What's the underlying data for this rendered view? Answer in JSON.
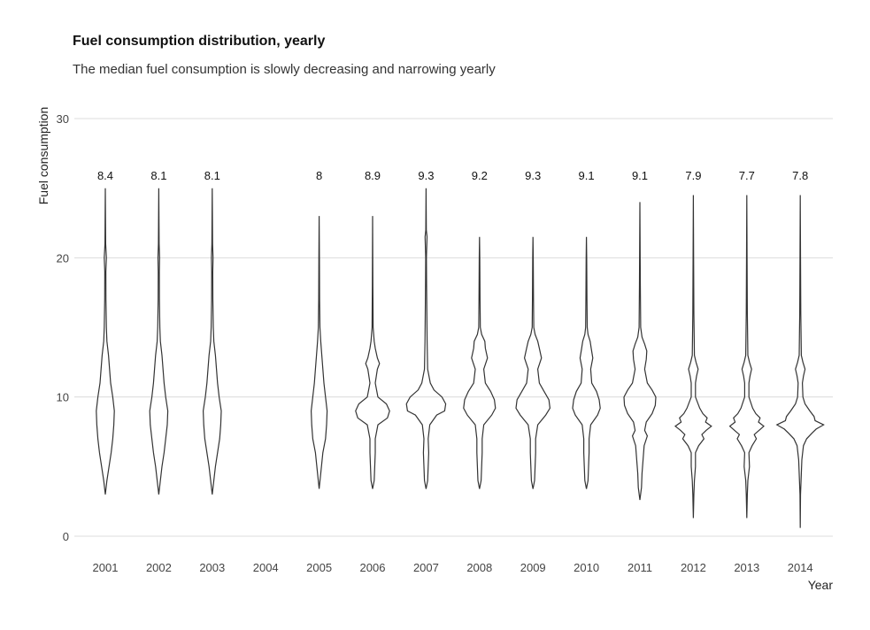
{
  "chart_data": {
    "type": "violin",
    "title": "Fuel consumption distribution, yearly",
    "subtitle": "The median fuel consumption is slowly decreasing and narrowing yearly",
    "xlabel": "Year",
    "ylabel": "Fuel consumption",
    "ylim": [
      0,
      30
    ],
    "yticks": [
      0,
      10,
      20,
      30
    ],
    "grid": true,
    "categories": [
      "2001",
      "2002",
      "2003",
      "2004",
      "2005",
      "2006",
      "2007",
      "2008",
      "2009",
      "2010",
      "2011",
      "2012",
      "2013",
      "2014"
    ],
    "medians": [
      "8.4",
      "8.1",
      "8.1",
      "",
      "8",
      "8.9",
      "9.3",
      "9.2",
      "9.3",
      "9.1",
      "9.1",
      "7.9",
      "7.7",
      "7.8"
    ],
    "ranges": [
      [
        3,
        25
      ],
      [
        3,
        25
      ],
      [
        3,
        25
      ],
      null,
      [
        3.4,
        23
      ],
      [
        3.4,
        23
      ],
      [
        3.4,
        25
      ],
      [
        3.4,
        21.5
      ],
      [
        3.4,
        21.5
      ],
      [
        3.4,
        21.5
      ],
      [
        2.6,
        24
      ],
      [
        1.3,
        24.5
      ],
      [
        1.3,
        24.5
      ],
      [
        0.6,
        24.5
      ]
    ],
    "density": [
      [
        [
          3,
          0
        ],
        [
          4,
          0.3
        ],
        [
          5,
          0.7
        ],
        [
          6,
          1.1
        ],
        [
          7,
          1.4
        ],
        [
          8,
          1.6
        ],
        [
          9,
          1.7
        ],
        [
          10,
          1.4
        ],
        [
          11,
          1.0
        ],
        [
          12,
          0.8
        ],
        [
          13,
          0.6
        ],
        [
          14,
          0.3
        ],
        [
          15,
          0.2
        ],
        [
          17,
          0.12
        ],
        [
          19,
          0.1
        ],
        [
          20,
          0.2
        ],
        [
          21,
          0.07
        ],
        [
          25,
          0
        ]
      ],
      [
        [
          3,
          0
        ],
        [
          4,
          0.3
        ],
        [
          5,
          0.6
        ],
        [
          6,
          1.0
        ],
        [
          7,
          1.3
        ],
        [
          8,
          1.6
        ],
        [
          9,
          1.7
        ],
        [
          10,
          1.3
        ],
        [
          11,
          1.0
        ],
        [
          12,
          0.8
        ],
        [
          13,
          0.6
        ],
        [
          14,
          0.3
        ],
        [
          15,
          0.2
        ],
        [
          17,
          0.12
        ],
        [
          19,
          0.1
        ],
        [
          20,
          0.15
        ],
        [
          21,
          0.07
        ],
        [
          25,
          0
        ]
      ],
      [
        [
          3,
          0
        ],
        [
          4,
          0.3
        ],
        [
          5,
          0.6
        ],
        [
          6,
          1.0
        ],
        [
          7,
          1.4
        ],
        [
          8,
          1.6
        ],
        [
          9,
          1.7
        ],
        [
          10,
          1.3
        ],
        [
          11,
          1.0
        ],
        [
          12,
          0.8
        ],
        [
          13,
          0.6
        ],
        [
          14,
          0.3
        ],
        [
          15,
          0.2
        ],
        [
          17,
          0.12
        ],
        [
          19,
          0.1
        ],
        [
          20,
          0.15
        ],
        [
          21,
          0.07
        ],
        [
          25,
          0
        ]
      ],
      [],
      [
        [
          3.4,
          0
        ],
        [
          4.5,
          0.3
        ],
        [
          6,
          0.7
        ],
        [
          7,
          1.2
        ],
        [
          8,
          1.4
        ],
        [
          9,
          1.5
        ],
        [
          10,
          1.2
        ],
        [
          11,
          0.9
        ],
        [
          12,
          0.7
        ],
        [
          13,
          0.5
        ],
        [
          14,
          0.3
        ],
        [
          15,
          0.15
        ],
        [
          17,
          0.08
        ],
        [
          20,
          0.05
        ],
        [
          23,
          0
        ]
      ],
      [
        [
          3.4,
          0
        ],
        [
          4,
          0.3
        ],
        [
          5,
          0.4
        ],
        [
          6,
          0.5
        ],
        [
          7,
          0.5
        ],
        [
          8,
          1.0
        ],
        [
          8.5,
          2.8
        ],
        [
          9,
          3.2
        ],
        [
          9.5,
          2.6
        ],
        [
          10,
          1.0
        ],
        [
          11,
          0.5
        ],
        [
          12,
          0.9
        ],
        [
          12.4,
          1.3
        ],
        [
          12.8,
          0.9
        ],
        [
          13.5,
          0.5
        ],
        [
          14,
          0.3
        ],
        [
          15,
          0.1
        ],
        [
          18,
          0.05
        ],
        [
          23,
          0
        ]
      ],
      [
        [
          3.4,
          0
        ],
        [
          4,
          0.3
        ],
        [
          5,
          0.4
        ],
        [
          6,
          0.5
        ],
        [
          7,
          0.4
        ],
        [
          8,
          0.7
        ],
        [
          8.7,
          2.0
        ],
        [
          9,
          3.5
        ],
        [
          9.5,
          3.7
        ],
        [
          10,
          3.0
        ],
        [
          10.5,
          1.5
        ],
        [
          11,
          0.8
        ],
        [
          12,
          0.3
        ],
        [
          14,
          0.2
        ],
        [
          16,
          0.15
        ],
        [
          18,
          0.1
        ],
        [
          20,
          0.07
        ],
        [
          21.5,
          0.18
        ],
        [
          22,
          0.05
        ],
        [
          25,
          0
        ]
      ],
      [
        [
          3.4,
          0
        ],
        [
          4,
          0.3
        ],
        [
          5,
          0.4
        ],
        [
          6,
          0.5
        ],
        [
          7,
          0.5
        ],
        [
          8,
          0.8
        ],
        [
          8.7,
          2.3
        ],
        [
          9.2,
          3.0
        ],
        [
          9.8,
          2.8
        ],
        [
          10.4,
          2.1
        ],
        [
          11,
          1.1
        ],
        [
          12,
          0.8
        ],
        [
          12.8,
          1.5
        ],
        [
          13.5,
          1.1
        ],
        [
          14,
          1.0
        ],
        [
          14.5,
          0.4
        ],
        [
          15,
          0.15
        ],
        [
          17,
          0.1
        ],
        [
          20,
          0.05
        ],
        [
          21.5,
          0
        ]
      ],
      [
        [
          3.4,
          0
        ],
        [
          4,
          0.3
        ],
        [
          5,
          0.4
        ],
        [
          6,
          0.5
        ],
        [
          7,
          0.5
        ],
        [
          8,
          0.9
        ],
        [
          8.7,
          2.4
        ],
        [
          9.2,
          3.2
        ],
        [
          9.8,
          3.0
        ],
        [
          10.4,
          2.1
        ],
        [
          11,
          1.2
        ],
        [
          12,
          0.9
        ],
        [
          12.8,
          1.6
        ],
        [
          13.5,
          1.2
        ],
        [
          14,
          0.9
        ],
        [
          14.5,
          0.4
        ],
        [
          15,
          0.15
        ],
        [
          17,
          0.1
        ],
        [
          20,
          0.05
        ],
        [
          21.5,
          0
        ]
      ],
      [
        [
          3.4,
          0
        ],
        [
          4,
          0.3
        ],
        [
          5,
          0.4
        ],
        [
          6,
          0.5
        ],
        [
          7,
          0.5
        ],
        [
          8,
          0.8
        ],
        [
          8.7,
          2.1
        ],
        [
          9.2,
          2.6
        ],
        [
          9.8,
          2.4
        ],
        [
          10.4,
          1.9
        ],
        [
          11,
          1.0
        ],
        [
          12,
          0.8
        ],
        [
          12.8,
          1.2
        ],
        [
          13.5,
          0.9
        ],
        [
          14,
          0.7
        ],
        [
          14.5,
          0.3
        ],
        [
          15,
          0.15
        ],
        [
          17,
          0.1
        ],
        [
          20,
          0.05
        ],
        [
          21.5,
          0
        ]
      ],
      [
        [
          2.6,
          0
        ],
        [
          3.5,
          0.3
        ],
        [
          4.5,
          0.4
        ],
        [
          5.5,
          0.6
        ],
        [
          6.5,
          0.8
        ],
        [
          7.2,
          1.4
        ],
        [
          7.6,
          0.9
        ],
        [
          8.2,
          1.2
        ],
        [
          8.8,
          2.3
        ],
        [
          9.4,
          2.9
        ],
        [
          10,
          3.0
        ],
        [
          10.5,
          2.3
        ],
        [
          11,
          1.4
        ],
        [
          12,
          0.9
        ],
        [
          12.7,
          1.2
        ],
        [
          13.3,
          1.3
        ],
        [
          13.8,
          0.9
        ],
        [
          14.3,
          0.4
        ],
        [
          15,
          0.15
        ],
        [
          18,
          0.08
        ],
        [
          24,
          0
        ]
      ],
      [
        [
          1.3,
          0
        ],
        [
          3,
          0.1
        ],
        [
          4,
          0.2
        ],
        [
          5,
          0.4
        ],
        [
          6,
          0.4
        ],
        [
          6.5,
          1.0
        ],
        [
          7,
          2.0
        ],
        [
          7.3,
          1.6
        ],
        [
          7.6,
          2.4
        ],
        [
          7.9,
          3.4
        ],
        [
          8.2,
          2.3
        ],
        [
          8.5,
          2.6
        ],
        [
          8.8,
          1.8
        ],
        [
          9.2,
          1.2
        ],
        [
          10,
          0.4
        ],
        [
          11,
          0.4
        ],
        [
          11.5,
          0.6
        ],
        [
          12,
          0.9
        ],
        [
          12.5,
          0.5
        ],
        [
          13,
          0.2
        ],
        [
          16,
          0.1
        ],
        [
          20,
          0.05
        ],
        [
          24.5,
          0
        ]
      ],
      [
        [
          1.3,
          0
        ],
        [
          3,
          0.1
        ],
        [
          4,
          0.2
        ],
        [
          5,
          0.5
        ],
        [
          6,
          0.4
        ],
        [
          6.5,
          1.0
        ],
        [
          7,
          1.8
        ],
        [
          7.3,
          1.4
        ],
        [
          7.6,
          2.3
        ],
        [
          7.9,
          3.2
        ],
        [
          8.2,
          2.2
        ],
        [
          8.5,
          2.5
        ],
        [
          8.8,
          1.7
        ],
        [
          9.2,
          1.1
        ],
        [
          10,
          0.4
        ],
        [
          11,
          0.4
        ],
        [
          11.5,
          0.6
        ],
        [
          12,
          0.9
        ],
        [
          12.5,
          0.5
        ],
        [
          13,
          0.2
        ],
        [
          16,
          0.1
        ],
        [
          20,
          0.05
        ],
        [
          24.5,
          0
        ]
      ],
      [
        [
          0.6,
          0
        ],
        [
          3,
          0.05
        ],
        [
          4,
          0.15
        ],
        [
          5.5,
          0.3
        ],
        [
          6.5,
          0.6
        ],
        [
          7,
          1.2
        ],
        [
          7.4,
          2.2
        ],
        [
          7.7,
          3.0
        ],
        [
          8,
          4.4
        ],
        [
          8.3,
          2.8
        ],
        [
          8.6,
          2.6
        ],
        [
          9,
          1.8
        ],
        [
          9.5,
          0.9
        ],
        [
          10,
          0.5
        ],
        [
          11,
          0.4
        ],
        [
          11.5,
          0.6
        ],
        [
          12,
          0.9
        ],
        [
          12.5,
          0.5
        ],
        [
          13,
          0.2
        ],
        [
          16,
          0.1
        ],
        [
          20,
          0.05
        ],
        [
          24.5,
          0
        ]
      ]
    ]
  }
}
